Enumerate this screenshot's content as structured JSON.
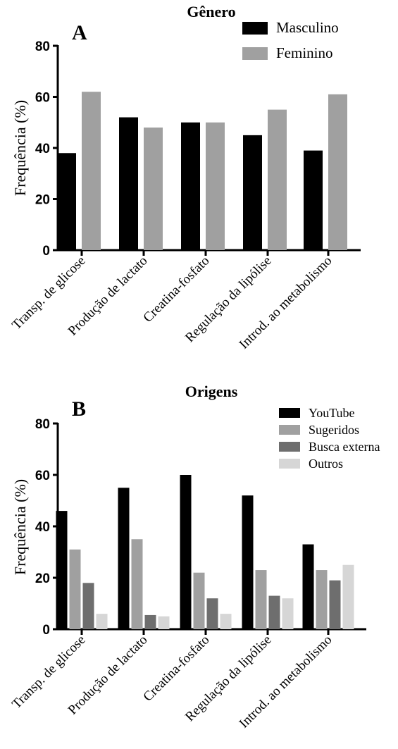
{
  "chart_data": [
    {
      "type": "bar",
      "panel_label": "A",
      "title": "Gênero",
      "ylabel": "Frequência (%)",
      "ylim": [
        0,
        80
      ],
      "yticks": [
        "0",
        "20",
        "40",
        "60",
        "80"
      ],
      "categories": [
        "Transp. de glicose",
        "Produção de lactato",
        "Creatina-fosfato",
        "Regulação da lipólise",
        "Introd. ao metabolismo"
      ],
      "legend_position": "top-right",
      "series": [
        {
          "name": "Masculino",
          "color": "#000000",
          "values": [
            38,
            52,
            50,
            45,
            39
          ]
        },
        {
          "name": "Feminino",
          "color": "#a0a0a0",
          "values": [
            62,
            48,
            50,
            55,
            61
          ]
        }
      ]
    },
    {
      "type": "bar",
      "panel_label": "B",
      "title": "Origens",
      "ylabel": "Frequência (%)",
      "ylim": [
        0,
        80
      ],
      "yticks": [
        "0",
        "20",
        "40",
        "60",
        "80"
      ],
      "categories": [
        "Transp. de glicose",
        "Produção de lactato",
        "Creatina-fosfato",
        "Regulação da lipólise",
        "Introd. ao metabolismo"
      ],
      "legend_position": "top-right",
      "series": [
        {
          "name": "YouTube",
          "color": "#000000",
          "values": [
            46,
            55,
            60,
            52,
            33
          ]
        },
        {
          "name": "Sugeridos",
          "color": "#a0a0a0",
          "values": [
            31,
            35,
            22,
            23,
            23
          ]
        },
        {
          "name": "Busca externa",
          "color": "#6e6e6e",
          "values": [
            18,
            5.5,
            12,
            13,
            19
          ]
        },
        {
          "name": "Outros",
          "color": "#d6d6d6",
          "values": [
            6,
            5,
            6,
            12,
            25
          ]
        }
      ]
    }
  ]
}
